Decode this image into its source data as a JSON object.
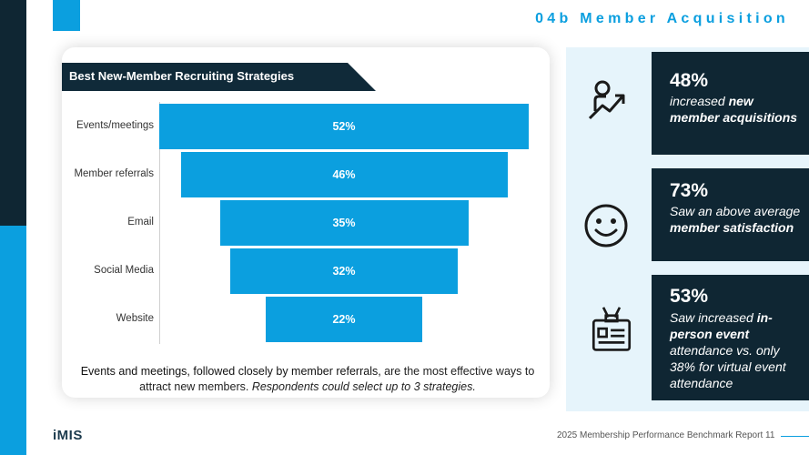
{
  "section_title": "04b Member Acquisition",
  "chart_data": {
    "type": "bar",
    "title": "Best New-Member Recruiting Strategies",
    "categories": [
      "Events/meetings",
      "Member referrals",
      "Email",
      "Social Media",
      "Website"
    ],
    "values": [
      52,
      46,
      35,
      32,
      22
    ],
    "value_labels": [
      "52%",
      "46%",
      "35%",
      "32%",
      "22%"
    ],
    "style": "funnel",
    "color": "#0b9fdf"
  },
  "caption": {
    "lead": "Events and meetings, followed closely by member referrals,",
    "rest": " are the most effective ways to attract new members.",
    "note": " Respondents could select up to 3 strategies."
  },
  "stats": [
    {
      "number": "48%",
      "pre": "increased ",
      "bold": "new member acquisitions",
      "post": "",
      "icon": "person-growth-icon"
    },
    {
      "number": "73%",
      "pre": "Saw an above average ",
      "bold": "member satisfaction",
      "post": "",
      "icon": "smiley-icon"
    },
    {
      "number": "53%",
      "pre": "Saw increased ",
      "bold": "in-person event",
      "post": " attendance vs. only 38% for virtual event attendance",
      "icon": "badge-icon"
    }
  ],
  "footer": {
    "logo": "iMIS",
    "report": "2025 Membership Performance Benchmark Report",
    "page": "11"
  }
}
